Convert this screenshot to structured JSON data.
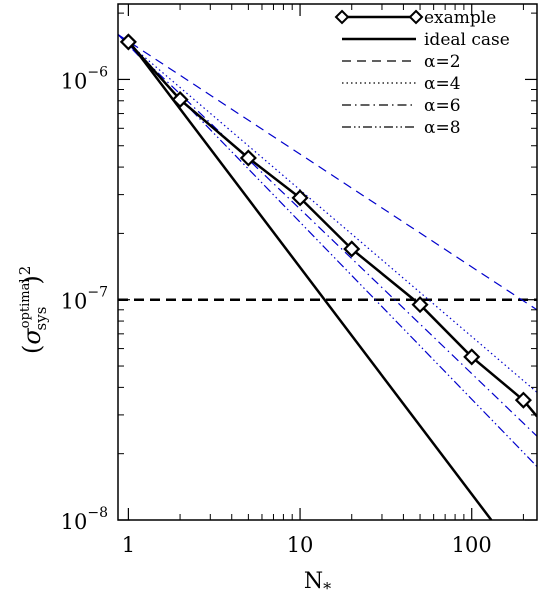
{
  "chart_data": {
    "type": "line",
    "xscale": "log",
    "yscale": "log",
    "xlim": [
      0.87,
      240
    ],
    "ylim": [
      1e-08,
      2.2e-06
    ],
    "xlabel": {
      "main": "N",
      "sub": "*"
    },
    "ylabel": {
      "base": "σ",
      "sup": "optimal",
      "sub": "sys",
      "power": "2"
    },
    "grid": false,
    "legend_position": "top-right",
    "x_ticks": [
      {
        "value": 1,
        "label": "1"
      },
      {
        "value": 10,
        "label": "10"
      },
      {
        "value": 100,
        "label": "100"
      }
    ],
    "y_ticks": [
      {
        "value": 1e-08,
        "base": "10",
        "exp": "−8"
      },
      {
        "value": 1e-07,
        "base": "10",
        "exp": "−7"
      },
      {
        "value": 1e-06,
        "base": "10",
        "exp": "−6"
      }
    ],
    "reference_line": {
      "y": 1e-07,
      "style": "dashed",
      "color": "#000000"
    },
    "series": [
      {
        "name": "example",
        "style": "solid-marker",
        "color": "#000000",
        "marker": "diamond",
        "x": [
          1,
          2,
          5,
          10,
          20,
          50,
          100,
          200,
          240
        ],
        "y": [
          1.48e-06,
          8.1e-07,
          4.4e-07,
          2.9e-07,
          1.7e-07,
          9.5e-08,
          5.5e-08,
          3.5e-08,
          2.95e-08
        ],
        "marker_count": 8
      },
      {
        "name": "ideal case",
        "style": "solid",
        "color": "#000000",
        "x": [
          1,
          130
        ],
        "y": [
          1.5e-06,
          1e-08
        ]
      },
      {
        "name": "α=2",
        "style": "dashed",
        "color": "#0000cc",
        "x": [
          0.87,
          240
        ],
        "y": [
          1.6e-06,
          9e-08
        ]
      },
      {
        "name": "α=4",
        "style": "dotted",
        "color": "#0000cc",
        "x": [
          0.87,
          240
        ],
        "y": [
          1.6e-06,
          3.8e-08
        ]
      },
      {
        "name": "α=6",
        "style": "dashdot",
        "color": "#0000cc",
        "x": [
          0.87,
          240
        ],
        "y": [
          1.6e-06,
          2.4e-08
        ]
      },
      {
        "name": "α=8",
        "style": "dashdotdot",
        "color": "#0000cc",
        "x": [
          0.87,
          240
        ],
        "y": [
          1.6e-06,
          1.75e-08
        ]
      }
    ]
  }
}
